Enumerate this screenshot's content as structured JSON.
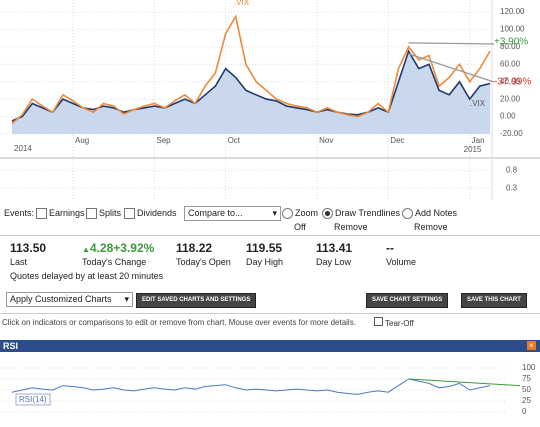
{
  "chart_data": [
    {
      "type": "line",
      "categories": [
        "2014",
        null,
        null,
        null,
        null,
        null,
        "Aug",
        null,
        null,
        null,
        null,
        null,
        null,
        null,
        "Sep",
        null,
        null,
        null,
        null,
        null,
        null,
        "Oct",
        null,
        null,
        null,
        null,
        null,
        null,
        null,
        null,
        "Nov",
        null,
        null,
        null,
        null,
        null,
        null,
        "Dec",
        null,
        null,
        null,
        null,
        null,
        null,
        null,
        "Jan",
        null,
        null
      ],
      "year_label": "2015",
      "series": [
        {
          "name": ".VIX",
          "color": "#1f3a6e",
          "fill": "#c9d8ec",
          "change_label": "-37.99%",
          "change_color": "#e03030",
          "values": [
            -5,
            0,
            15,
            10,
            5,
            20,
            15,
            10,
            8,
            12,
            10,
            5,
            8,
            10,
            12,
            10,
            15,
            20,
            15,
            25,
            35,
            55,
            45,
            30,
            25,
            20,
            18,
            12,
            10,
            8,
            5,
            8,
            5,
            3,
            2,
            5,
            10,
            5,
            40,
            75,
            55,
            60,
            30,
            25,
            40,
            20,
            35,
            38
          ]
        },
        {
          "name": ".VIX",
          "color": "#f0883a",
          "change_label": "+3.90%",
          "change_color": "#3a9a3a",
          "values": [
            -8,
            2,
            20,
            12,
            5,
            25,
            18,
            10,
            5,
            15,
            12,
            3,
            8,
            12,
            15,
            10,
            18,
            25,
            15,
            35,
            50,
            95,
            115,
            60,
            40,
            30,
            20,
            15,
            12,
            10,
            5,
            10,
            5,
            2,
            0,
            5,
            15,
            5,
            55,
            80,
            65,
            70,
            35,
            45,
            60,
            40,
            55,
            75
          ]
        }
      ],
      "ylim": [
        -20,
        120
      ],
      "yticks": [
        {
          "value": 120,
          "label": "120.00"
        },
        {
          "value": 100,
          "label": "100.00"
        },
        {
          "value": 80,
          "label": "80.00"
        },
        {
          "value": 60,
          "label": "60.00"
        },
        {
          "value": 40,
          "label": "40.00"
        },
        {
          "value": 20,
          "label": "20.00"
        },
        {
          "value": 0,
          "label": "0.00"
        },
        {
          "value": -20,
          "label": "-20.00"
        }
      ],
      "grid": true
    },
    {
      "type": "line",
      "title": "RSI",
      "series": [
        {
          "name": "RSI(14)",
          "color": "#4a78c0",
          "values": [
            45,
            50,
            55,
            52,
            50,
            60,
            58,
            55,
            50,
            52,
            55,
            50,
            48,
            52,
            55,
            52,
            50,
            55,
            52,
            58,
            60,
            62,
            55,
            50,
            52,
            50,
            48,
            50,
            52,
            50,
            48,
            50,
            45,
            42,
            40,
            45,
            48,
            45,
            60,
            75,
            70,
            65,
            55,
            58,
            65,
            50,
            55,
            60
          ]
        }
      ],
      "ylim": [
        0,
        100
      ],
      "yticks": [
        100,
        75,
        50,
        25,
        0
      ]
    }
  ],
  "volume_panel": {
    "ylim": [
      0,
      1
    ],
    "yticks": [
      0.8,
      0.3
    ]
  },
  "events": {
    "label": "Events:",
    "options": [
      "Earnings",
      "Splits",
      "Dividends"
    ],
    "compare": "Compare to...",
    "zoom": [
      "Zoom",
      "Off"
    ],
    "trend": [
      "Draw Trendlines",
      "Remove"
    ],
    "notes": [
      "Add Notes",
      "Remove"
    ]
  },
  "quote": {
    "fields": [
      {
        "value": "113.50",
        "label": "Last"
      },
      {
        "value": "4.28+3.92%",
        "label": "Today's Change"
      },
      {
        "value": "118.22",
        "label": "Today's Open"
      },
      {
        "value": "119.55",
        "label": "Day High"
      },
      {
        "value": "113.41",
        "label": "Day Low"
      },
      {
        "value": "--",
        "label": "Volume"
      }
    ],
    "note": "Quotes delayed by at least 20 minutes"
  },
  "toolbar": {
    "select": "Apply Customized Charts",
    "buttons": [
      "EDIT SAVED CHARTS AND SETTINGS",
      "SAVE CHART SETTINGS",
      "SAVE THIS CHART"
    ]
  },
  "hint": "Click on indicators or comparisons to edit or remove from chart. Mouse over events for more details.",
  "tear_off": "Tear-Off"
}
